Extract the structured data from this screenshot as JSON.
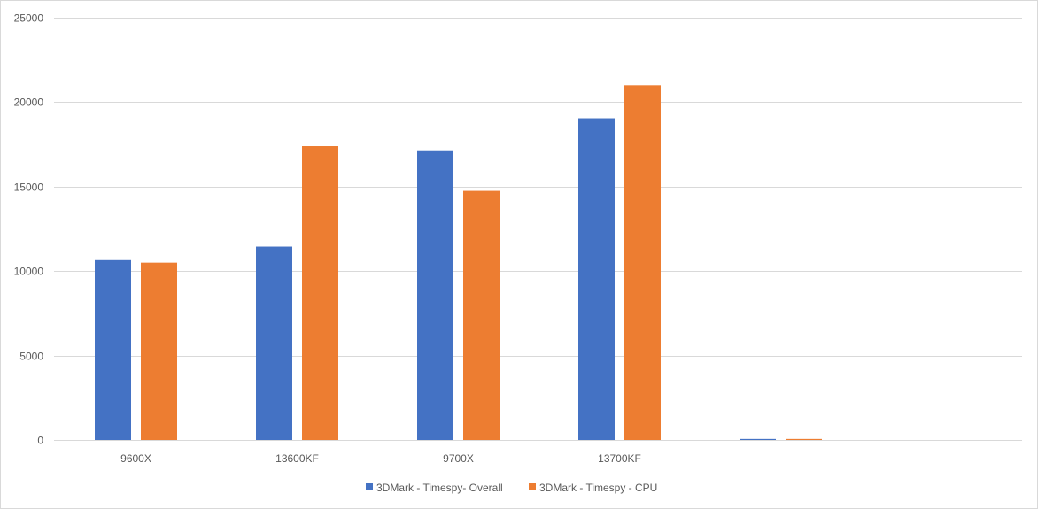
{
  "chart_data": {
    "type": "bar",
    "title": "",
    "xlabel": "",
    "ylabel": "",
    "categories": [
      "9600X",
      "13600KF",
      "9700X",
      "13700KF",
      ""
    ],
    "series": [
      {
        "name": "3DMark - Timespy- Overall",
        "color": "#4472c4",
        "values": [
          10650,
          11450,
          17100,
          19050,
          60
        ]
      },
      {
        "name": "3DMark - Timespy - CPU",
        "color": "#ed7d31",
        "values": [
          10500,
          17400,
          14750,
          21000,
          60
        ]
      }
    ],
    "ylim": [
      0,
      25000
    ],
    "yticks": [
      0,
      5000,
      10000,
      15000,
      20000,
      25000
    ],
    "grid": true,
    "legend_position": "bottom"
  }
}
